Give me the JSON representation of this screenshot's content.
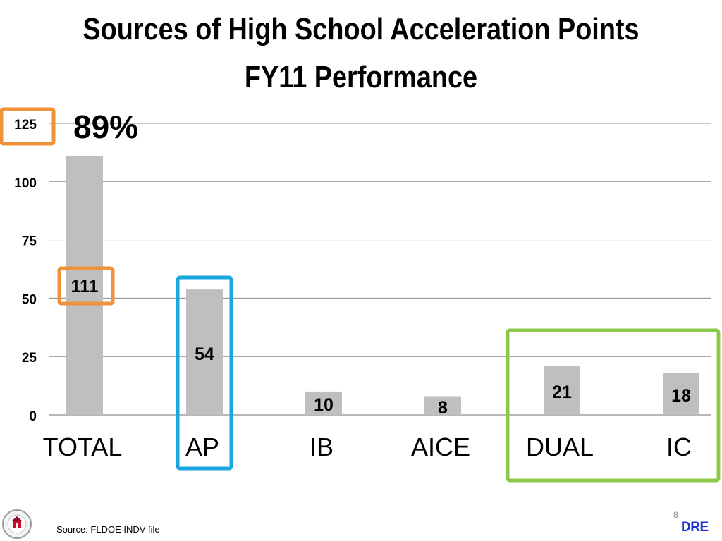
{
  "title_line1": "Sources of High School Acceleration Points",
  "title_line2": "FY11 Performance",
  "annotation_percent": "89%",
  "footer": {
    "source": "Source:  FLDOE INDV file",
    "slide_number": "8",
    "brand": "DRE",
    "logo_text": "THE SCHOOL DISTRICT"
  },
  "colors": {
    "bar": "#bfbfbf",
    "grid": "#8c8c8c",
    "highlight_orange": "#f0923a",
    "highlight_blue": "#1aa7e0",
    "highlight_green": "#8cc84b"
  },
  "chart_data": {
    "type": "bar",
    "categories": [
      "TOTAL",
      "AP",
      "IB",
      "AICE",
      "DUAL",
      "IC"
    ],
    "values": [
      111,
      54,
      10,
      8,
      21,
      18
    ],
    "data_labels": [
      "111",
      "54",
      "10",
      "8",
      "21",
      "18"
    ],
    "y_ticks": [
      0,
      25,
      50,
      75,
      100,
      125
    ],
    "ylim": [
      0,
      125
    ],
    "grid": true,
    "title": "",
    "xlabel": "",
    "ylabel": ""
  }
}
